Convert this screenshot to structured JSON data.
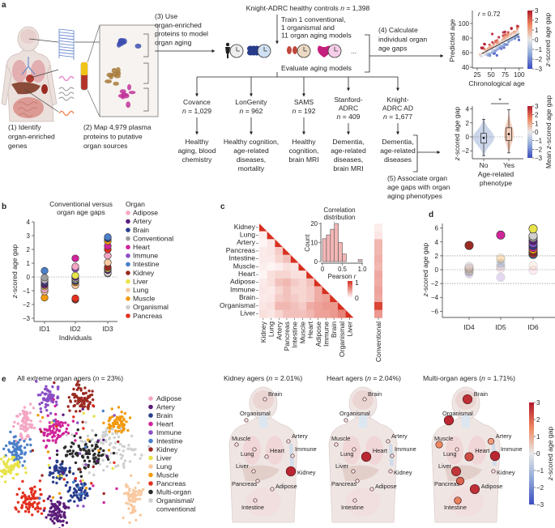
{
  "panel_labels": {
    "a": "a",
    "b": "b",
    "c": "c",
    "d": "d",
    "e": "e"
  },
  "panel_a": {
    "step1": [
      "(1) Identify",
      "organ-enriched",
      "genes"
    ],
    "step2": [
      "(2) Map 4,979 plasma",
      "proteins to putative",
      "organ sources"
    ],
    "step3": [
      "(3) Use",
      "organ-enriched",
      "proteins to model",
      "organ aging"
    ],
    "cohort_title": "Knight-ADRC healthy controls n = 1,398",
    "train": [
      "Train 1 conventional,",
      "1 organismal and",
      "11 organ aging models"
    ],
    "ellipsis": "...",
    "evaluate": "Evaluate aging models",
    "step4": [
      "(4) Calculate",
      "individual organ",
      "age gaps"
    ],
    "step5": [
      "(5) Associate organ",
      "age gaps with organ",
      "aging phenotypes"
    ],
    "cohorts": [
      {
        "name": [
          "Covance"
        ],
        "n": "n = 1,029",
        "outcome": [
          "Healthy",
          "aging, blood",
          "chemistry"
        ]
      },
      {
        "name": [
          "LonGenity"
        ],
        "n": "n = 962",
        "outcome": [
          "Healthy cognition,",
          "age-related",
          "diseases,",
          "mortality"
        ]
      },
      {
        "name": [
          "SAMS"
        ],
        "n": "n = 192",
        "outcome": [
          "Healthy",
          "cognition,",
          "brain MRI"
        ]
      },
      {
        "name": [
          "Stanford-",
          "ADRC"
        ],
        "n": "n = 409",
        "outcome": [
          "Dementia,",
          "age-related",
          "diseases,",
          "brain MRI"
        ]
      },
      {
        "name": [
          "Knight-",
          "ADRC AD"
        ],
        "n": "n = 1,677",
        "outcome": [
          "Dementia,",
          "age-related",
          "diseases"
        ]
      }
    ],
    "scatter": {
      "annotation": "r = 0.72",
      "xlabel": "Chronological age",
      "ylabel": "Predicted age",
      "xticks": [
        "25",
        "50",
        "75",
        "100"
      ],
      "yticks": [
        "40",
        "60",
        "80",
        "100"
      ],
      "colorbar_label": "z-scored age gap",
      "colorbar_ticks": [
        "3",
        "2",
        "1",
        "0",
        "−1",
        "−2",
        "−3"
      ]
    },
    "violin": {
      "ylabel": "z-scored age gap",
      "yticks": [
        "4",
        "2",
        "0",
        "−2"
      ],
      "categories": [
        "No",
        "Yes"
      ],
      "xlabel": [
        "Age-related",
        "phenotype"
      ],
      "significance": "*",
      "colorbar_label": "Mean z-scored age gap",
      "colorbar_ticks": [
        "3",
        "2",
        "1",
        "0",
        "−1",
        "−2",
        "−3"
      ]
    }
  },
  "organ_colors": {
    "Adipose": "#f4a6c4",
    "Artery": "#5b1d7a",
    "Brain": "#283c8c",
    "Conventional": "#9e9e9e",
    "Heart": "#d0259a",
    "Immune": "#8a4fc4",
    "Intestine": "#4a7fc9",
    "Kidney": "#9b2a22",
    "Liver": "#e8e34a",
    "Lung": "#f8c9a0",
    "Muscle": "#f29a0e",
    "Organismal": "#cfcfcf",
    "Pancreas": "#e3301f",
    "Multi-organ": "#2b2b2b"
  },
  "chart_data": [
    {
      "id": "b",
      "type": "scatter",
      "title": [
        "Conventional versus",
        "organ age gaps"
      ],
      "xlabel": "Individuals",
      "ylabel": "z-scored age gap",
      "ylim": [
        -3,
        4
      ],
      "yticks": [
        "4",
        "3",
        "2",
        "1",
        "0",
        "−1",
        "−2",
        "−3"
      ],
      "categories": [
        "ID1",
        "ID2",
        "ID3"
      ],
      "legend_title": "Organ",
      "legend": [
        "Adipose",
        "Artery",
        "Brain",
        "Conventional",
        "Heart",
        "Immune",
        "Intestine",
        "Kidney",
        "Liver",
        "Lung",
        "Muscle",
        "Organismal",
        "Pancreas"
      ],
      "series": {
        "ID1": {
          "Intestine": 0.45,
          "Conventional": -0.05,
          "Organismal": -0.2,
          "Immune": -0.3,
          "Brain": -0.4,
          "Artery": -0.5,
          "Kidney": -0.5,
          "Pancreas": -0.5,
          "Heart": -0.6,
          "Liver": -0.7,
          "Adipose": -0.9,
          "Lung": -1.05,
          "Muscle": -1.5
        },
        "ID2": {
          "Heart": 1.35,
          "Adipose": 0.75,
          "Immune": 0.6,
          "Liver": 0.1,
          "Artery": 0.0,
          "Organismal": -0.1,
          "Conventional": -0.2,
          "Intestine": -0.2,
          "Brain": -0.3,
          "Muscle": -0.4,
          "Lung": -0.6,
          "Pancreas": -1.55,
          "Kidney": -1.65
        },
        "ID3": {
          "Intestine": 2.9,
          "Brain": 2.8,
          "Muscle": 2.6,
          "Heart": 2.25,
          "Pancreas": 2.0,
          "Adipose": 1.55,
          "Lung": 1.05,
          "Kidney": 0.7,
          "Liver": 0.6,
          "Artery": 0.5,
          "Immune": 0.5,
          "Organismal": 0.3,
          "Conventional": 0.25
        }
      }
    },
    {
      "id": "c",
      "type": "heatmap",
      "labels": [
        "Kidney",
        "Lung",
        "Artery",
        "Pancreas",
        "Intestine",
        "Muscle",
        "Heart",
        "Adipose",
        "Immune",
        "Brain",
        "Organismal",
        "Liver"
      ],
      "lower_triangle": [
        [],
        [
          0.08
        ],
        [
          0.05,
          0.12
        ],
        [
          0.1,
          0.12,
          0.25
        ],
        [
          0.1,
          0.1,
          0.2,
          0.3
        ],
        [
          0.08,
          0.05,
          0.08,
          0.15,
          0.12
        ],
        [
          0.05,
          0.15,
          0.2,
          0.2,
          0.15,
          0.15
        ],
        [
          0.1,
          0.15,
          0.3,
          0.35,
          0.25,
          0.2,
          0.3
        ],
        [
          0.12,
          0.1,
          0.2,
          0.3,
          0.2,
          0.2,
          0.25,
          0.4
        ],
        [
          0.1,
          0.12,
          0.25,
          0.3,
          0.25,
          0.2,
          0.25,
          0.4,
          0.45
        ],
        [
          0.12,
          0.15,
          0.35,
          0.35,
          0.3,
          0.25,
          0.4,
          0.45,
          0.5,
          0.5
        ],
        [
          0.15,
          0.12,
          0.2,
          0.3,
          0.3,
          0.3,
          0.35,
          0.45,
          0.45,
          0.5,
          0.6
        ]
      ],
      "conventional_label": "Conventional",
      "conventional": [
        0.08,
        0.12,
        0.35,
        0.35,
        0.38,
        0.35,
        0.42,
        0.4,
        0.45,
        0.42,
        0.9,
        0.5
      ],
      "colorbar_label": "Pearson r",
      "colorbar_ticks": [
        "1",
        "0"
      ],
      "inset": {
        "type": "bar",
        "title": [
          "Correlation",
          "distribution"
        ],
        "xlabel": "Pearson r",
        "ylabel": "Count",
        "bin_width": 0.1,
        "bin_starts": [
          0,
          0.1,
          0.2,
          0.3,
          0.4,
          0.5,
          0.6,
          0.7,
          0.8,
          0.9
        ],
        "counts": [
          12,
          14,
          17,
          20,
          10,
          4,
          0,
          0,
          0,
          1
        ],
        "mean_line": 0.3,
        "xticks": [
          "0",
          "0.5",
          "1.0"
        ],
        "yticks": [
          "20",
          "10",
          "0"
        ]
      }
    },
    {
      "id": "d",
      "type": "scatter",
      "ylabel": "z-scored age gap",
      "ylim": [
        -6.5,
        6.5
      ],
      "yticks": [
        "6",
        "4",
        "2",
        "0",
        "−2",
        "−4",
        "−6"
      ],
      "threshold_lines": [
        2,
        0,
        -2
      ],
      "categories": [
        "ID4",
        "ID5",
        "ID6"
      ],
      "series": {
        "ID4": {
          "Kidney": 3.5,
          "Organismal": 0.5,
          "Adipose": 0.3,
          "Conventional": 0.2,
          "Lung": 0.1,
          "Liver": -0.2,
          "Brain": -0.3,
          "Immune": -0.6
        },
        "ID5": {
          "Heart": 5.0,
          "Lung": 1.7,
          "Muscle": 1.5,
          "Intestine": 0.9,
          "Conventional": 0.5,
          "Adipose": 0.2,
          "Immune": -1.1
        },
        "ID6": {
          "Liver": 5.9,
          "Organismal": 4.9,
          "Conventional": 4.6,
          "Artery": 4.2,
          "Immune": 3.8,
          "Brain": 3.5,
          "Heart": 3.2,
          "Muscle": 2.9,
          "Kidney": 2.6,
          "Pancreas": 2.4,
          "Intestine": 2.2,
          "Lung": 0.6,
          "Adipose": -0.1
        }
      }
    },
    {
      "id": "e",
      "type": "scatter",
      "title": "All extreme organ agers (n = 23%)",
      "legend": [
        "Adipose",
        "Artery",
        "Brain",
        "Heart",
        "Immune",
        "Intestine",
        "Kidney",
        "Liver",
        "Lung",
        "Muscle",
        "Pancreas",
        "Multi-organ",
        "Organismal/",
        "conventional"
      ],
      "body_panels": [
        {
          "title": "Kidney agers (n = 2.01%)",
          "values": {
            "Brain": 0.2,
            "Organismal": 0.3,
            "Muscle": 0.1,
            "Artery": 0.3,
            "Lung": 0.2,
            "Heart": 0.2,
            "Immune": 0.4,
            "Liver": 0.3,
            "Kidney": 2.8,
            "Pancreas": 0.1,
            "Adipose": 0.3,
            "Intestine": 0.2
          }
        },
        {
          "title": "Heart agers (n = 2.04%)",
          "values": {
            "Brain": 0.3,
            "Organismal": 0.4,
            "Muscle": 0.3,
            "Artery": 0.3,
            "Lung": 0.2,
            "Heart": 2.8,
            "Immune": 0.2,
            "Liver": 0.3,
            "Kidney": 0.3,
            "Pancreas": 0.4,
            "Adipose": 0.5,
            "Intestine": 0.2
          }
        },
        {
          "title": "Multi-organ agers (n = 1.71%)",
          "values": {
            "Brain": 2.7,
            "Organismal": 2.8,
            "Muscle": 1.5,
            "Artery": 1.2,
            "Lung": 0.8,
            "Heart": 2.3,
            "Immune": 2.8,
            "Liver": 2.6,
            "Kidney": 0.9,
            "Pancreas": 2.0,
            "Adipose": 2.7,
            "Intestine": 1.6
          }
        }
      ],
      "organ_labels": [
        "Brain",
        "Organismal",
        "Muscle",
        "Artery",
        "Lung",
        "Heart",
        "Immune",
        "Liver",
        "Kidney",
        "Pancreas",
        "Adipose",
        "Intestine"
      ],
      "colorbar_label": "z-scored age gap",
      "colorbar_ticks": [
        "3",
        "2",
        "1",
        "0",
        "−1",
        "−2",
        "−3"
      ]
    }
  ]
}
